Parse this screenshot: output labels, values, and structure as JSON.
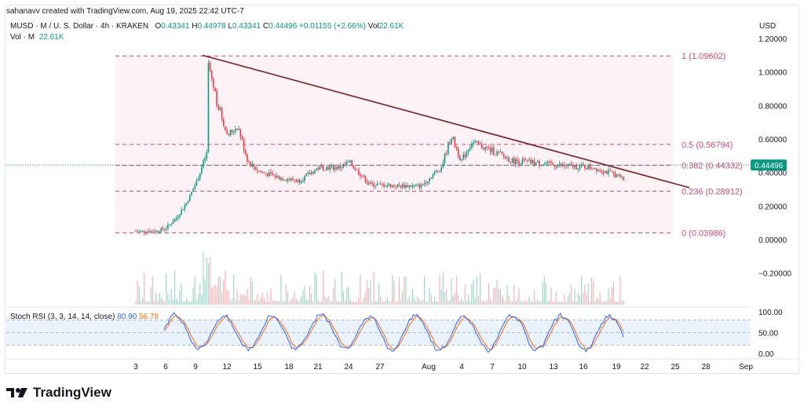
{
  "credit": "sahanavv created with TradingView.com, Aug 19, 2025 22:42 UTC-7",
  "header": {
    "symbol": "MUSD · M / U. S. Dollar · 4h · KRAKEN",
    "o_label": "O",
    "o_value": "0.43341",
    "h_label": "H",
    "h_value": "0.44978",
    "l_label": "L",
    "l_value": "0.43341",
    "c_label": "C",
    "c_value": "0.44496",
    "change": "+0.01155 (+2.66%)",
    "vol_label": "Vol",
    "vol_value": "22.61K",
    "vol_line_label": "Vol · M",
    "vol_line_value": "22.61K"
  },
  "currency": "USD",
  "rsi": {
    "label": "Stoch RSI (3, 3, 14, 14, close)",
    "k": "80.90",
    "d": "56.78"
  },
  "footer": {
    "brand": "TradingView"
  },
  "colors": {
    "up": "#089981",
    "down": "#f23645",
    "fib": "#d04a73",
    "trend": "#7b1c22",
    "rsi_k": "#2962ff",
    "rsi_d": "#ff6d00"
  },
  "chart_data": {
    "type": "candlestick",
    "interval": "4h",
    "y_axis": {
      "ticks": [
        "1.20000",
        "1.00000",
        "0.80000",
        "0.60000",
        "0.40000",
        "0.20000",
        "0.00000",
        "−0.20000"
      ],
      "ylim": [
        -0.3,
        1.2
      ]
    },
    "x_axis": {
      "ticks": [
        "3",
        "6",
        "9",
        "12",
        "15",
        "18",
        "21",
        "24",
        "27",
        "Aug",
        "4",
        "7",
        "10",
        "13",
        "16",
        "19",
        "22",
        "25",
        "28",
        "Sep"
      ]
    },
    "last_price": "0.44496",
    "fib_levels": [
      {
        "label": "1 (1.09602)",
        "value": 1.09602
      },
      {
        "label": "0.5 (0.56794)",
        "value": 0.56794
      },
      {
        "label": "0.382 (0.44332)",
        "value": 0.44332
      },
      {
        "label": "0.236 (0.28912)",
        "value": 0.28912
      },
      {
        "label": "0 (0.03986)",
        "value": 0.03986
      }
    ],
    "trendline": {
      "start": {
        "x": "Jul 10",
        "y": 1.1
      },
      "end": {
        "x": "Aug 25",
        "y": 0.31
      }
    },
    "price_path": [
      [
        "Jul 3",
        0.05
      ],
      [
        "Jul 5",
        0.05
      ],
      [
        "Jul 6",
        0.07
      ],
      [
        "Jul 7",
        0.13
      ],
      [
        "Jul 8",
        0.22
      ],
      [
        "Jul 9",
        0.35
      ],
      [
        "Jul 10",
        0.52
      ],
      [
        "Jul 10",
        1.08
      ],
      [
        "Jul 11",
        0.82
      ],
      [
        "Jul 12",
        0.62
      ],
      [
        "Jul 13",
        0.68
      ],
      [
        "Jul 14",
        0.47
      ],
      [
        "Jul 15",
        0.41
      ],
      [
        "Jul 17",
        0.37
      ],
      [
        "Jul 19",
        0.35
      ],
      [
        "Jul 21",
        0.43
      ],
      [
        "Jul 23",
        0.43
      ],
      [
        "Jul 24",
        0.46
      ],
      [
        "Jul 26",
        0.33
      ],
      [
        "Jul 29",
        0.32
      ],
      [
        "Jul 31",
        0.32
      ],
      [
        "Aug 1",
        0.43
      ],
      [
        "Aug 2",
        0.62
      ],
      [
        "Aug 3",
        0.47
      ],
      [
        "Aug 4",
        0.58
      ],
      [
        "Aug 6",
        0.53
      ],
      [
        "Aug 8",
        0.47
      ],
      [
        "Aug 10",
        0.46
      ],
      [
        "Aug 13",
        0.44
      ],
      [
        "Aug 16",
        0.43
      ],
      [
        "Aug 18",
        0.39
      ],
      [
        "Aug 19",
        0.36
      ],
      [
        "Aug 19",
        0.44496
      ]
    ],
    "rsi_axis": {
      "ticks": [
        "100.00",
        "50.00",
        "0.00"
      ],
      "upper": 80,
      "lower": 20
    }
  }
}
